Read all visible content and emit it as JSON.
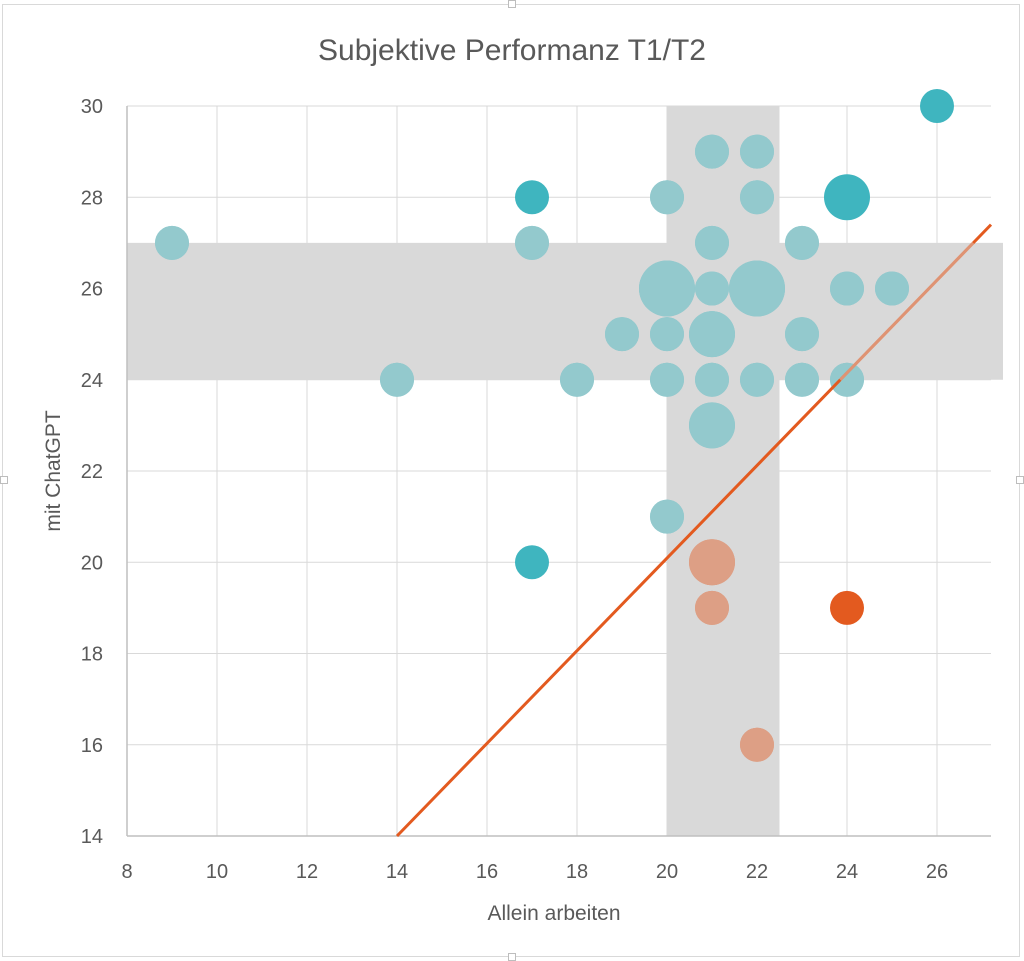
{
  "chart_data": {
    "type": "scatter",
    "title": "Subjektive Performanz T1/T2",
    "xlabel": "Allein arbeiten",
    "ylabel": "mit ChatGPT",
    "xlim": [
      8,
      27.2
    ],
    "ylim": [
      14,
      30
    ],
    "xticks": [
      8,
      10,
      12,
      14,
      16,
      18,
      20,
      22,
      24,
      26
    ],
    "yticks": [
      14,
      16,
      18,
      20,
      22,
      24,
      26,
      28,
      30
    ],
    "grid": true,
    "legend": "none",
    "bands": [
      {
        "axis": "y",
        "from": 24,
        "to": 27,
        "color": "#d9d9d9"
      },
      {
        "axis": "x",
        "from": 20,
        "to": 22.5,
        "color": "#d9d9d9"
      }
    ],
    "diagonal_line": {
      "x": [
        14,
        27.2
      ],
      "y": [
        14,
        27.4
      ],
      "color": "#e35a1f"
    },
    "colors": {
      "above": "#3fb5bf",
      "below": "#e35a1f",
      "band_overlay": "#d9d9d9"
    },
    "points": [
      {
        "x": 9,
        "y": 27,
        "size": 1
      },
      {
        "x": 14,
        "y": 24,
        "size": 1
      },
      {
        "x": 17,
        "y": 28,
        "size": 1
      },
      {
        "x": 17,
        "y": 27,
        "size": 1
      },
      {
        "x": 17,
        "y": 20,
        "size": 1
      },
      {
        "x": 18,
        "y": 24,
        "size": 1
      },
      {
        "x": 19,
        "y": 25,
        "size": 1
      },
      {
        "x": 20,
        "y": 28,
        "size": 1
      },
      {
        "x": 20,
        "y": 26,
        "size": 3
      },
      {
        "x": 20,
        "y": 25,
        "size": 1
      },
      {
        "x": 20,
        "y": 24,
        "size": 1
      },
      {
        "x": 20,
        "y": 21,
        "size": 1
      },
      {
        "x": 21,
        "y": 29,
        "size": 1
      },
      {
        "x": 21,
        "y": 27,
        "size": 1
      },
      {
        "x": 21,
        "y": 26,
        "size": 1
      },
      {
        "x": 21,
        "y": 25,
        "size": 2
      },
      {
        "x": 21,
        "y": 24,
        "size": 1
      },
      {
        "x": 21,
        "y": 23,
        "size": 2
      },
      {
        "x": 21,
        "y": 20,
        "size": 2
      },
      {
        "x": 21,
        "y": 19,
        "size": 1
      },
      {
        "x": 22,
        "y": 29,
        "size": 1
      },
      {
        "x": 22,
        "y": 28,
        "size": 1
      },
      {
        "x": 22,
        "y": 26,
        "size": 3
      },
      {
        "x": 22,
        "y": 24,
        "size": 1
      },
      {
        "x": 22,
        "y": 16,
        "size": 1
      },
      {
        "x": 23,
        "y": 27,
        "size": 1
      },
      {
        "x": 23,
        "y": 25,
        "size": 1
      },
      {
        "x": 23,
        "y": 24,
        "size": 1
      },
      {
        "x": 24,
        "y": 28,
        "size": 2
      },
      {
        "x": 24,
        "y": 26,
        "size": 1
      },
      {
        "x": 24,
        "y": 24,
        "size": 1
      },
      {
        "x": 24,
        "y": 19,
        "size": 1
      },
      {
        "x": 25,
        "y": 26,
        "size": 1
      },
      {
        "x": 26,
        "y": 30,
        "size": 1
      }
    ]
  }
}
